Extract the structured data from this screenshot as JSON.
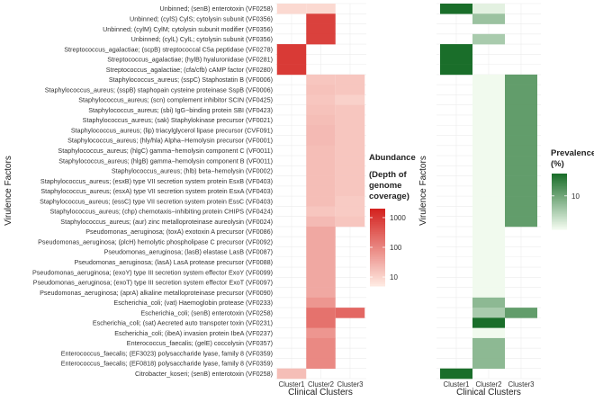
{
  "chart_data": [
    {
      "type": "heatmap",
      "title": "",
      "xlabel": "Clinical Clusters",
      "ylabel": "Virulence Factors",
      "categories": [
        "Cluster1",
        "Cluster2",
        "Cluster3"
      ],
      "rows": [
        "Unbinned; (senB) enterotoxin (VF0258)",
        "Unbinned; (cylS) CylS; cytolysin subunit (VF0356)",
        "Unbinned; (cylM) CylM; cytolysin subunit modifier (VF0356)",
        "Unbinned; (cylL) CylL; cytolysin subunit (VF0356)",
        "Streptococcus_agalactiae; (scpB) streptococcal C5a peptidase (VF0278)",
        "Streptococcus_agalactiae; (hylB) hyaluronidase (VF0281)",
        "Streptococcus_agalactiae; (cfa/cfb) cAMP factor (VF0280)",
        "Staphylococcus_aureus; (sspC) Staphostatin B (VF0006)",
        "Staphylococcus_aureus; (sspB) staphopain cysteine proteinase SspB (VF0006)",
        "Staphylococcus_aureus; (scn) complement inhibitor SCIN (VF0425)",
        "Staphylococcus_aureus; (sbi) IgG−binding protein SBI (VF0423)",
        "Staphylococcus_aureus; (sak) Staphylokinase precursor (VF0021)",
        "Staphylococcus_aureus; (lip) triacylglycerol lipase precursor (CVF091)",
        "Staphylococcus_aureus; (hly/hla) Alpha−Hemolysin precursor (VF0001)",
        "Staphylococcus_aureus; (hlgC) gamma−hemolysin component C (VF0011)",
        "Staphylococcus_aureus; (hlgB) gamma−hemolysin component B (VF0011)",
        "Staphylococcus_aureus; (hlb) beta−hemolysin (VF0002)",
        "Staphylococcus_aureus; (esxB) type VII secretion system protein EsxB (VF0403)",
        "Staphylococcus_aureus; (esxA) type VII secretion system protein EsxA (VF0403)",
        "Staphylococcus_aureus; (essC) type VII secretion system protein EssC (VF0403)",
        "Staphylococcus_aureus; (chp) chemotaxis−inhibiting protein CHIPS (VF0424)",
        "Staphylococcus_aureus; (aur) zinc metalloproteinase aureolysin (VF0024)",
        "Pseudomonas_aeruginosa; (toxA) exotoxin A precursor (VF0086)",
        "Pseudomonas_aeruginosa; (plcH) hemolytic phospholipase C precursor (VF0092)",
        "Pseudomonas_aeruginosa; (lasB) elastase LasB (VF0087)",
        "Pseudomonas_aeruginosa; (lasA) LasA protease precursor (VF0088)",
        "Pseudomonas_aeruginosa; (exoY) type III secretion system effector ExoY (VF0099)",
        "Pseudomonas_aeruginosa; (exoT) type III secretion system effector ExoT (VF0097)",
        "Pseudomonas_aeruginosa; (aprA) alkaline metalloproteinase precursor (VF0090)",
        "Escherichia_coli; (vat) Haemoglobin protease (VF0233)",
        "Escherichia_coli; (senB) enterotoxin (VF0258)",
        "Escherichia_coli; (sat) Aecreted auto transpoter toxin (VF0231)",
        "Escherichia_coli; (ibeA) invasion protein IbeA (VF0237)",
        "Enterococcus_faecalis; (gelE) coccolysin (VF0357)",
        "Enterococcus_faecalis; (EF3023) polysaccharide lyase, family 8 (VF0359)",
        "Enterococcus_faecalis; (EF0818) polysaccharide lyase, family 8 (VF0359)",
        "Citrobacter_koseri; (senB) enterotoxin (VF0258)"
      ],
      "values": [
        [
          8,
          8,
          null
        ],
        [
          null,
          800,
          null
        ],
        [
          null,
          800,
          null
        ],
        [
          null,
          800,
          null
        ],
        [
          1000,
          null,
          null
        ],
        [
          1000,
          null,
          null
        ],
        [
          1000,
          null,
          null
        ],
        [
          null,
          14,
          14
        ],
        [
          null,
          16,
          14
        ],
        [
          null,
          14,
          10
        ],
        [
          null,
          16,
          14
        ],
        [
          null,
          18,
          14
        ],
        [
          null,
          20,
          14
        ],
        [
          null,
          20,
          14
        ],
        [
          null,
          18,
          14
        ],
        [
          null,
          18,
          14
        ],
        [
          null,
          18,
          14
        ],
        [
          null,
          18,
          14
        ],
        [
          null,
          18,
          14
        ],
        [
          null,
          18,
          12
        ],
        [
          null,
          14,
          12
        ],
        [
          null,
          20,
          14
        ],
        [
          null,
          35,
          null
        ],
        [
          null,
          35,
          null
        ],
        [
          null,
          35,
          null
        ],
        [
          null,
          35,
          null
        ],
        [
          null,
          35,
          null
        ],
        [
          null,
          35,
          null
        ],
        [
          null,
          35,
          null
        ],
        [
          null,
          60,
          null
        ],
        [
          null,
          180,
          250
        ],
        [
          null,
          180,
          null
        ],
        [
          null,
          60,
          null
        ],
        [
          null,
          90,
          null
        ],
        [
          null,
          90,
          null
        ],
        [
          null,
          90,
          null
        ],
        [
          18,
          null,
          null
        ]
      ],
      "legend": {
        "title_lines": [
          "Abundance",
          "(Depth of",
          "genome",
          "coverage)"
        ],
        "ticks": [
          "1000",
          "100",
          "10"
        ],
        "tick_values": [
          1000,
          100,
          10
        ],
        "range": [
          5,
          2000
        ],
        "position": "right"
      },
      "color_low": "#FEE8E0",
      "color_high": "#D42320"
    },
    {
      "type": "heatmap",
      "title": "",
      "xlabel": "Clinical Clusters",
      "ylabel": "Virulence Factors",
      "categories": [
        "Cluster1",
        "Cluster2",
        "Cluster3"
      ],
      "rows_ref": "same as first heatmap",
      "values": [
        [
          16,
          2,
          null
        ],
        [
          null,
          7,
          null
        ],
        [
          null,
          null,
          null
        ],
        [
          null,
          6,
          null
        ],
        [
          16,
          null,
          null
        ],
        [
          16,
          null,
          null
        ],
        [
          16,
          null,
          null
        ],
        [
          null,
          1,
          11
        ],
        [
          null,
          1,
          11
        ],
        [
          null,
          1,
          11
        ],
        [
          null,
          1,
          11
        ],
        [
          null,
          1,
          11
        ],
        [
          null,
          1,
          11
        ],
        [
          null,
          1,
          11
        ],
        [
          null,
          1,
          11
        ],
        [
          null,
          1,
          11
        ],
        [
          null,
          1,
          11
        ],
        [
          null,
          1,
          11
        ],
        [
          null,
          1,
          11
        ],
        [
          null,
          1,
          11
        ],
        [
          null,
          1,
          11
        ],
        [
          null,
          1,
          11
        ],
        [
          null,
          1,
          null
        ],
        [
          null,
          1,
          null
        ],
        [
          null,
          1,
          null
        ],
        [
          null,
          1,
          null
        ],
        [
          null,
          1,
          null
        ],
        [
          null,
          1,
          null
        ],
        [
          null,
          1,
          null
        ],
        [
          null,
          8,
          null
        ],
        [
          null,
          6,
          11
        ],
        [
          null,
          16,
          null
        ],
        [
          null,
          1,
          null
        ],
        [
          null,
          8,
          null
        ],
        [
          null,
          8,
          null
        ],
        [
          null,
          8,
          null
        ],
        [
          16,
          null,
          null
        ]
      ],
      "legend": {
        "title_lines": [
          "Prevalence",
          "(%)"
        ],
        "ticks": [
          "10"
        ],
        "tick_values": [
          10
        ],
        "range": [
          1,
          16
        ],
        "position": "right"
      },
      "color_low": "#F1FAEE",
      "color_high": "#1A6E2A"
    }
  ]
}
